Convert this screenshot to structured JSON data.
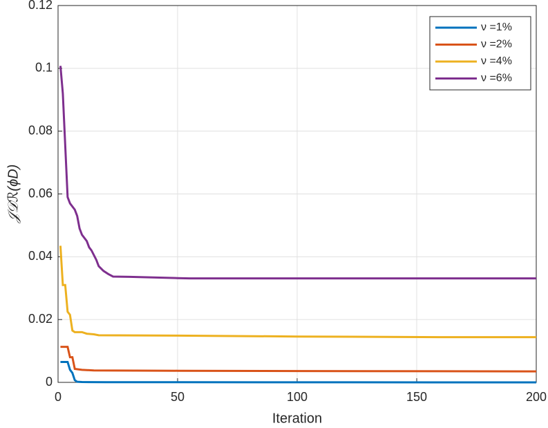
{
  "chart_data": {
    "type": "line",
    "x_label": "Iteration",
    "y_label": "𝒥𝒟ℛ(ϕD)",
    "xlim": [
      0,
      200
    ],
    "xticks": [
      0,
      50,
      100,
      150,
      200
    ],
    "ylim": [
      0,
      0.12
    ],
    "yticks": [
      0,
      0.02,
      0.04,
      0.06,
      0.08,
      0.1,
      0.12
    ],
    "grid": true,
    "legend": "top-right",
    "series": [
      {
        "name": "ν =1%",
        "color": "#0072bd",
        "x": [
          1,
          4,
          5,
          6,
          7,
          8,
          10,
          20,
          200
        ],
        "values": [
          0.0065,
          0.0065,
          0.004,
          0.003,
          0.0007,
          0.0002,
          0.0001,
          5e-05,
          0
        ]
      },
      {
        "name": "ν =2%",
        "color": "#d95319",
        "x": [
          1,
          4,
          5,
          6,
          7,
          10,
          15,
          50,
          100,
          200
        ],
        "values": [
          0.0113,
          0.0113,
          0.008,
          0.008,
          0.0043,
          0.004,
          0.0038,
          0.0037,
          0.0036,
          0.0035
        ]
      },
      {
        "name": "ν =4%",
        "color": "#edb120",
        "x": [
          1,
          2,
          3,
          4,
          5,
          6,
          7,
          10,
          12,
          15,
          17,
          50,
          100,
          160,
          200
        ],
        "values": [
          0.0435,
          0.031,
          0.031,
          0.0225,
          0.0215,
          0.0165,
          0.016,
          0.016,
          0.0155,
          0.0153,
          0.015,
          0.0149,
          0.0146,
          0.0144,
          0.0144
        ]
      },
      {
        "name": "ν =6%",
        "color": "#7e2f8e",
        "x": [
          1,
          2,
          4,
          5,
          7,
          8,
          9,
          10,
          12,
          13,
          14,
          16,
          17,
          19,
          21,
          23,
          30,
          50,
          55,
          200
        ],
        "values": [
          0.1008,
          0.092,
          0.059,
          0.057,
          0.055,
          0.053,
          0.049,
          0.047,
          0.045,
          0.043,
          0.042,
          0.039,
          0.037,
          0.0355,
          0.0345,
          0.0337,
          0.0336,
          0.0332,
          0.0331,
          0.0331
        ]
      }
    ]
  }
}
